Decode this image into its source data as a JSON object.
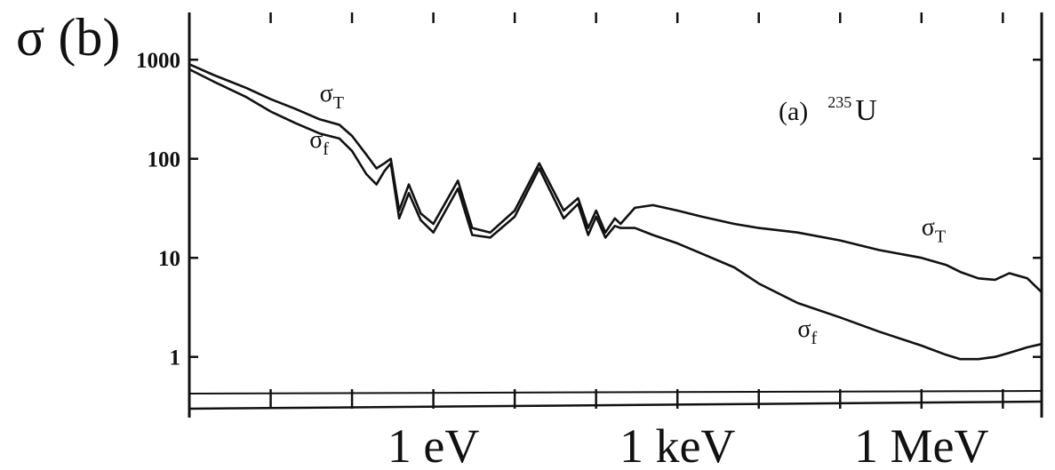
{
  "chart_data": {
    "type": "line",
    "title": "",
    "panel_label": "(a)",
    "isotope": {
      "mass_number": "235",
      "symbol": "U"
    },
    "ylabel": "σ (b)",
    "xlabel": "",
    "xscale": "log",
    "yscale": "log",
    "xlim_eV": [
      0.001,
      30000000
    ],
    "ylim_b": [
      0.3,
      3000
    ],
    "x_ticks": [
      {
        "value_eV": 1,
        "label": "1 eV"
      },
      {
        "value_eV": 1000,
        "label": "1 keV"
      },
      {
        "value_eV": 1000000,
        "label": "1 MeV"
      }
    ],
    "y_ticks": [
      {
        "value": 1000,
        "label": "1000"
      },
      {
        "value": 100,
        "label": "100"
      },
      {
        "value": 10,
        "label": "10"
      },
      {
        "value": 1,
        "label": "1"
      }
    ],
    "grid": false,
    "legend": "none",
    "series": [
      {
        "name": "σT",
        "label_parts": {
          "base": "σ",
          "sub": "T"
        },
        "x_eV": [
          0.001,
          0.002,
          0.005,
          0.01,
          0.02,
          0.04,
          0.07,
          0.1,
          0.15,
          0.2,
          0.25,
          0.3,
          0.38,
          0.5,
          0.7,
          1,
          2,
          3,
          5,
          10,
          20,
          40,
          60,
          80,
          100,
          130,
          170,
          200,
          300,
          500,
          1000,
          2000,
          5000,
          10000,
          30000,
          100000,
          300000,
          1000000,
          2000000,
          3000000,
          5000000,
          8000000,
          12000000,
          20000000,
          30000000
        ],
        "y_b": [
          900,
          700,
          520,
          400,
          320,
          250,
          220,
          170,
          110,
          80,
          90,
          100,
          30,
          55,
          28,
          22,
          60,
          20,
          18,
          30,
          90,
          30,
          40,
          20,
          30,
          18,
          25,
          22,
          32,
          34,
          30,
          26,
          22,
          20,
          18,
          15,
          12,
          10,
          8.5,
          7.2,
          6.2,
          6.0,
          7.0,
          6.2,
          4.5
        ]
      },
      {
        "name": "σf",
        "label_parts": {
          "base": "σ",
          "sub": "f"
        },
        "x_eV": [
          0.001,
          0.002,
          0.005,
          0.01,
          0.02,
          0.04,
          0.07,
          0.1,
          0.15,
          0.2,
          0.25,
          0.3,
          0.38,
          0.5,
          0.7,
          1,
          2,
          3,
          5,
          10,
          20,
          40,
          60,
          80,
          100,
          130,
          170,
          200,
          300,
          500,
          1000,
          2000,
          5000,
          10000,
          30000,
          100000,
          300000,
          1000000,
          2000000,
          3000000,
          5000000,
          8000000,
          12000000,
          20000000,
          30000000
        ],
        "y_b": [
          800,
          600,
          420,
          300,
          230,
          180,
          160,
          120,
          70,
          55,
          75,
          90,
          25,
          45,
          24,
          18,
          50,
          17,
          16,
          26,
          80,
          25,
          35,
          17,
          26,
          16,
          21,
          20,
          20,
          17,
          14,
          11,
          8,
          5.5,
          3.5,
          2.5,
          1.8,
          1.3,
          1.05,
          0.95,
          0.95,
          1.0,
          1.1,
          1.25,
          1.35
        ]
      }
    ],
    "annotations": [
      {
        "text": "σT",
        "target": "σT",
        "x_eV": 0.04,
        "y_b": 380
      },
      {
        "text": "σf",
        "target": "σf",
        "x_eV": 0.03,
        "y_b": 130
      },
      {
        "text": "σT",
        "target": "σT",
        "x_eV": 1000000,
        "y_b": 17
      },
      {
        "text": "σf",
        "target": "σf",
        "x_eV": 30000,
        "y_b": 1.6
      }
    ]
  }
}
